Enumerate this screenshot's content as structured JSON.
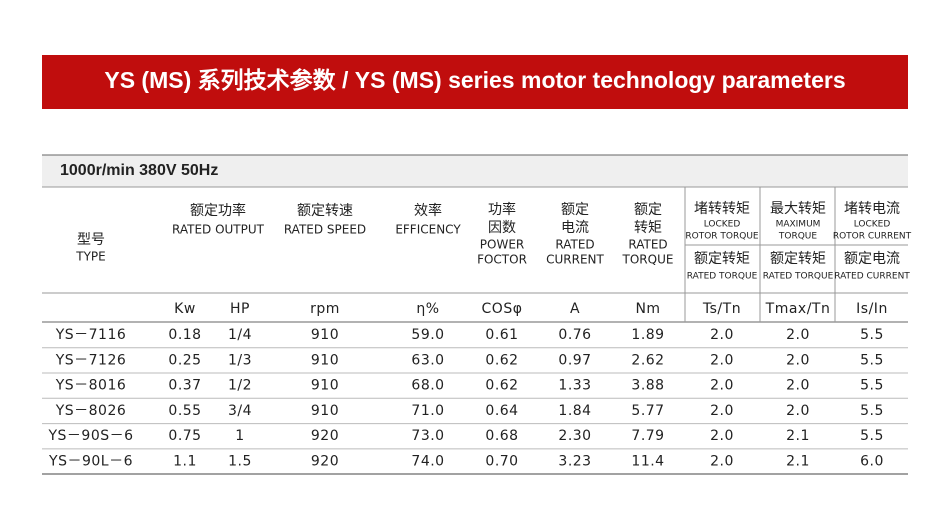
{
  "header": {
    "title": "YS (MS) 系列技术参数 / YS (MS) series motor technology parameters"
  },
  "table": {
    "condition": "1000r/min   380V  50Hz",
    "headers": [
      {
        "zh": [
          "型号"
        ],
        "en": [
          "TYPE"
        ]
      },
      {
        "zh": [
          "额定功率"
        ],
        "en": [
          "RATED OUTPUT"
        ]
      },
      {
        "zh": [
          "额定转速"
        ],
        "en": [
          "RATED SPEED"
        ]
      },
      {
        "zh": [
          "效率"
        ],
        "en": [
          "EFFICENCY"
        ]
      },
      {
        "zh": [
          "功率",
          "因数"
        ],
        "en": [
          "POWER",
          "FOCTOR"
        ]
      },
      {
        "zh": [
          "额定",
          "电流"
        ],
        "en": [
          "RATED",
          "CURRENT"
        ]
      },
      {
        "zh": [
          "额定",
          "转矩"
        ],
        "en": [
          "RATED",
          "TORQUE"
        ]
      },
      {
        "zh": [
          "堵转转矩"
        ],
        "en": [
          "LOCKED",
          "ROTOR TORQUE"
        ],
        "zh2": "额定转矩",
        "en2": "RATED TORQUE"
      },
      {
        "zh": [
          "最大转矩"
        ],
        "en": [
          "MAXIMUM",
          "TORQUE"
        ],
        "zh2": "额定转矩",
        "en2": "RATED TORQUE"
      },
      {
        "zh": [
          "堵转电流"
        ],
        "en": [
          "LOCKED",
          "ROTOR CURRENT"
        ],
        "zh2": "额定电流",
        "en2": "RATED CURRENT"
      }
    ],
    "units": [
      "Kw",
      "HP",
      "rpm",
      "η%",
      "COSφ",
      "A",
      "Nm",
      "Ts/Tn",
      "Tmax/Tn",
      "Is/In"
    ],
    "rows": [
      [
        "YS－7116",
        "0.18",
        "1/4",
        "910",
        "59.0",
        "0.61",
        "0.76",
        "1.89",
        "2.0",
        "2.0",
        "5.5"
      ],
      [
        "YS－7126",
        "0.25",
        "1/3",
        "910",
        "63.0",
        "0.62",
        "0.97",
        "2.62",
        "2.0",
        "2.0",
        "5.5"
      ],
      [
        "YS－8016",
        "0.37",
        "1/2",
        "910",
        "68.0",
        "0.62",
        "1.33",
        "3.88",
        "2.0",
        "2.0",
        "5.5"
      ],
      [
        "YS－8026",
        "0.55",
        "3/4",
        "910",
        "71.0",
        "0.64",
        "1.84",
        "5.77",
        "2.0",
        "2.0",
        "5.5"
      ],
      [
        "YS－90S－6",
        "0.75",
        "1",
        "920",
        "73.0",
        "0.68",
        "2.30",
        "7.79",
        "2.0",
        "2.1",
        "5.5"
      ],
      [
        "YS－90L－6",
        "1.1",
        "1.5",
        "920",
        "74.0",
        "0.70",
        "3.23",
        "11.4",
        "2.0",
        "2.1",
        "6.0"
      ]
    ]
  }
}
